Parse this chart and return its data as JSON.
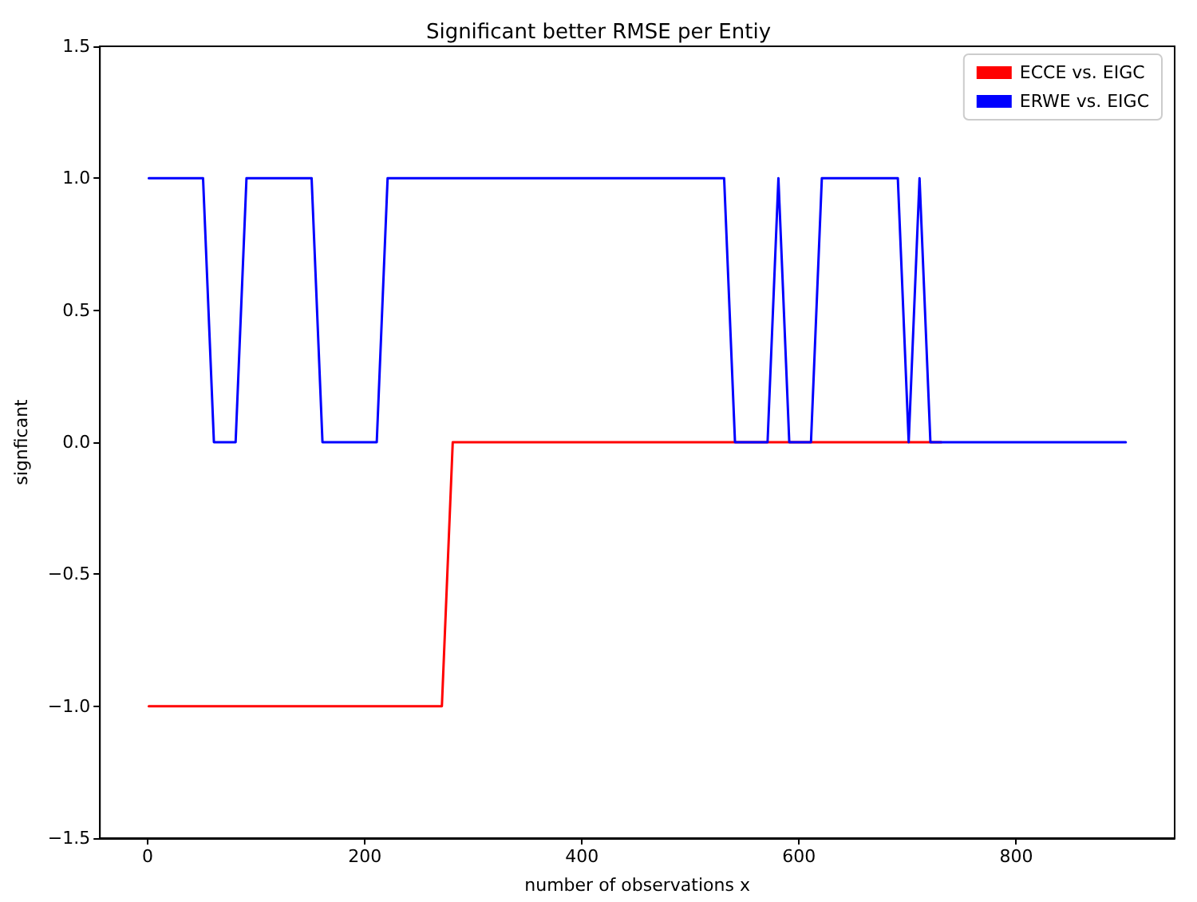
{
  "chart_data": {
    "type": "line",
    "title": "Significant better RMSE per Entiy",
    "xlabel": "number of observations x",
    "ylabel": "signficant",
    "x": [
      1,
      11,
      21,
      31,
      41,
      51,
      61,
      71,
      81,
      91,
      101,
      111,
      121,
      131,
      141,
      151,
      161,
      171,
      181,
      191,
      201,
      211,
      221,
      231,
      241,
      251,
      261,
      271,
      281,
      291,
      301,
      311,
      321,
      331,
      341,
      351,
      361,
      371,
      381,
      391,
      401,
      411,
      421,
      431,
      441,
      451,
      461,
      471,
      481,
      491,
      501,
      511,
      521,
      531,
      541,
      551,
      561,
      571,
      581,
      591,
      601,
      611,
      621,
      631,
      641,
      651,
      661,
      671,
      681,
      691,
      701,
      711,
      721,
      731,
      741,
      751,
      761,
      771,
      781,
      791,
      801,
      811,
      821,
      831,
      841,
      851,
      861,
      871,
      881,
      891,
      901
    ],
    "series": [
      {
        "name": "ECCE vs. EIGC",
        "color": "#ff0000",
        "values": [
          -1,
          -1,
          -1,
          -1,
          -1,
          -1,
          -1,
          -1,
          -1,
          -1,
          -1,
          -1,
          -1,
          -1,
          -1,
          -1,
          -1,
          -1,
          -1,
          -1,
          -1,
          -1,
          -1,
          -1,
          -1,
          -1,
          -1,
          -1,
          0,
          0,
          0,
          0,
          0,
          0,
          0,
          0,
          0,
          0,
          0,
          0,
          0,
          0,
          0,
          0,
          0,
          0,
          0,
          0,
          0,
          0,
          0,
          0,
          0,
          0,
          0,
          0,
          0,
          0,
          0,
          0,
          0,
          0,
          0,
          0,
          0,
          0,
          0,
          0,
          0,
          0,
          0,
          0,
          0,
          0,
          null,
          null,
          null,
          null,
          null,
          null,
          null,
          null,
          null,
          null,
          null,
          null,
          null,
          null,
          null,
          null,
          null
        ]
      },
      {
        "name": "ERWE vs. EIGC",
        "color": "#0000ff",
        "values": [
          1,
          1,
          1,
          1,
          1,
          1,
          0,
          0,
          0,
          1,
          1,
          1,
          1,
          1,
          1,
          1,
          0,
          0,
          0,
          0,
          0,
          0,
          1,
          1,
          1,
          1,
          1,
          1,
          1,
          1,
          1,
          1,
          1,
          1,
          1,
          1,
          1,
          1,
          1,
          1,
          1,
          1,
          1,
          1,
          1,
          1,
          1,
          1,
          1,
          1,
          1,
          1,
          1,
          1,
          0,
          0,
          0,
          0,
          1,
          0,
          0,
          0,
          1,
          1,
          1,
          1,
          1,
          1,
          1,
          1,
          0,
          1,
          0,
          0,
          0,
          0,
          0,
          0,
          0,
          0,
          0,
          0,
          0,
          0,
          0,
          0,
          0,
          0,
          0,
          0,
          0
        ]
      }
    ],
    "xlim": [
      -44,
      946
    ],
    "xticks": [
      0,
      200,
      400,
      600,
      800
    ],
    "ylim": [
      -1.5,
      1.5
    ],
    "yticks": [
      {
        "value": -1.5,
        "label": "−1.5"
      },
      {
        "value": -1.0,
        "label": "−1.0"
      },
      {
        "value": -0.5,
        "label": "−0.5"
      },
      {
        "value": 0,
        "label": "0.0"
      },
      {
        "value": 0.5,
        "label": "0.5"
      },
      {
        "value": 1.0,
        "label": "1.0"
      },
      {
        "value": 1.5,
        "label": "1.5"
      }
    ],
    "legend": "top right"
  }
}
